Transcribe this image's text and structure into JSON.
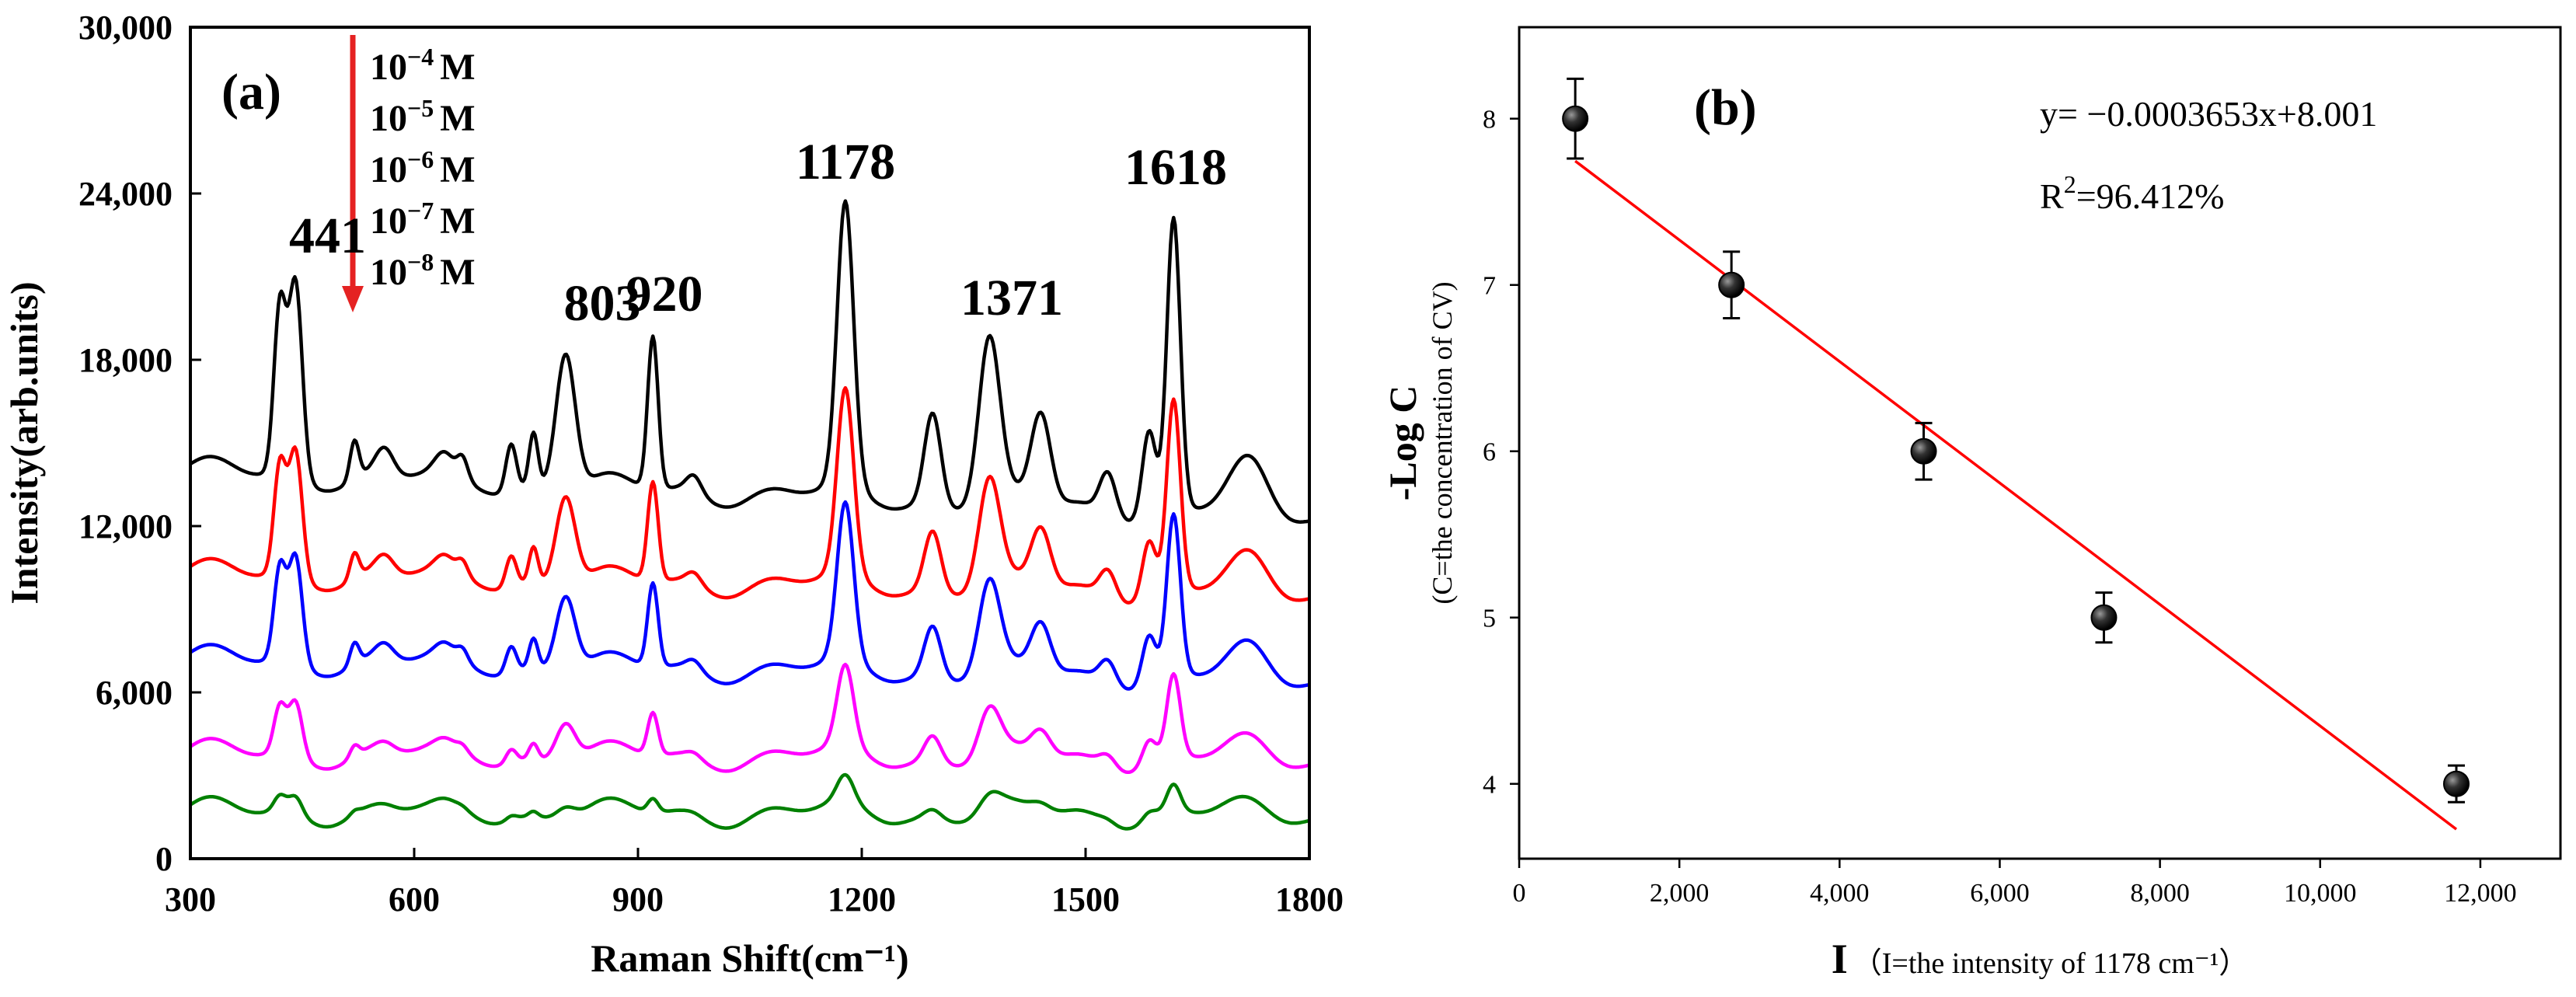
{
  "panel_a": {
    "label": "(a)",
    "chart_data": {
      "type": "line",
      "xlabel": "Raman Shift(cm⁻¹)",
      "ylabel": "Intensity(arb.units)",
      "xlim": [
        300,
        1800
      ],
      "ylim": [
        0,
        30000
      ],
      "xticks": [
        300,
        600,
        900,
        1200,
        1500,
        1800
      ],
      "yticks": [
        0,
        6000,
        12000,
        18000,
        24000,
        30000
      ],
      "xtick_labels": [
        "300",
        "600",
        "900",
        "1200",
        "1500",
        "1800"
      ],
      "ytick_labels": [
        "0",
        "6,000",
        "12,000",
        "18,000",
        "24,000",
        "30,000"
      ],
      "peak_labels": [
        {
          "text": "441",
          "x": 441
        },
        {
          "text": "803",
          "x": 803
        },
        {
          "text": "920",
          "x": 920
        },
        {
          "text": "1178",
          "x": 1178
        },
        {
          "text": "1371",
          "x": 1371
        },
        {
          "text": "1618",
          "x": 1618
        }
      ],
      "legend": {
        "placement": "top-left, beside red downward arrow",
        "entries": [
          {
            "base": "10",
            "exp": "−4",
            "unit": "M"
          },
          {
            "base": "10",
            "exp": "−5",
            "unit": "M"
          },
          {
            "base": "10",
            "exp": "−6",
            "unit": "M"
          },
          {
            "base": "10",
            "exp": "−7",
            "unit": "M"
          },
          {
            "base": "10",
            "exp": "−8",
            "unit": "M"
          }
        ]
      },
      "peak_positions": [
        420,
        441,
        520,
        560,
        640,
        665,
        730,
        760,
        803,
        920,
        975,
        1178,
        1295,
        1371,
        1440,
        1530,
        1585,
        1618,
        1720
      ],
      "series": [
        {
          "name": "10^-4 M",
          "color": "#000000",
          "baseline": 14000,
          "slope": -1600,
          "scale": 1.0
        },
        {
          "name": "10^-5 M",
          "color": "#ff0000",
          "baseline": 10300,
          "slope": -700,
          "scale": 0.65
        },
        {
          "name": "10^-6 M",
          "color": "#0000ff",
          "baseline": 7200,
          "slope": -700,
          "scale": 0.55
        },
        {
          "name": "10^-7 M",
          "color": "#ff00ff",
          "baseline": 3800,
          "slope": -200,
          "scale": 0.28
        },
        {
          "name": "10^-8 M",
          "color": "#008000",
          "baseline": 1700,
          "slope": -100,
          "scale": 0.09
        }
      ],
      "peak_heights_top_series": [
        6000,
        7000,
        1400,
        900,
        600,
        700,
        1700,
        2000,
        5000,
        5500,
        600,
        10200,
        3300,
        5800,
        3200,
        1600,
        3000,
        10400,
        1600
      ],
      "peak_widths": [
        8,
        9,
        6,
        12,
        12,
        7,
        7,
        6,
        13,
        7,
        10,
        11,
        11,
        14,
        13,
        11,
        9,
        9,
        25
      ]
    }
  },
  "panel_b": {
    "label": "(b)",
    "equation": "y= −0.0003653x+8.001",
    "r2_prefix": "R",
    "r2_sup": "2",
    "r2_value": "=96.412%",
    "chart_data": {
      "type": "scatter",
      "xlabel_main": "I",
      "xlabel_note": "（I=the intensity of 1178 cm⁻¹）",
      "ylabel_main": "-Log C",
      "ylabel_note": "(C=the concentration of CV)",
      "xlim": [
        0,
        13000
      ],
      "ylim": [
        3.55,
        8.55
      ],
      "xticks": [
        0,
        2000,
        4000,
        6000,
        8000,
        10000,
        12000
      ],
      "yticks": [
        4,
        5,
        6,
        7,
        8
      ],
      "xtick_labels": [
        "0",
        "2,000",
        "4,000",
        "6,000",
        "8,000",
        "10,000",
        "12,000"
      ],
      "ytick_labels": [
        "4",
        "5",
        "6",
        "7",
        "8"
      ],
      "points": [
        {
          "x": 700,
          "y": 8,
          "err": 0.24
        },
        {
          "x": 2650,
          "y": 7,
          "err": 0.2
        },
        {
          "x": 5050,
          "y": 6,
          "err": 0.17
        },
        {
          "x": 7300,
          "y": 5,
          "err": 0.15
        },
        {
          "x": 11700,
          "y": 4,
          "err": 0.11
        }
      ],
      "fit": {
        "slope": -0.0003653,
        "intercept": 8.001,
        "x_range": [
          700,
          11700
        ],
        "color": "#ff0000"
      }
    }
  },
  "colors": {
    "axis": "#000000",
    "arrow": "#e52222",
    "fit": "#ff0000",
    "marker": "#1a1a1a"
  }
}
